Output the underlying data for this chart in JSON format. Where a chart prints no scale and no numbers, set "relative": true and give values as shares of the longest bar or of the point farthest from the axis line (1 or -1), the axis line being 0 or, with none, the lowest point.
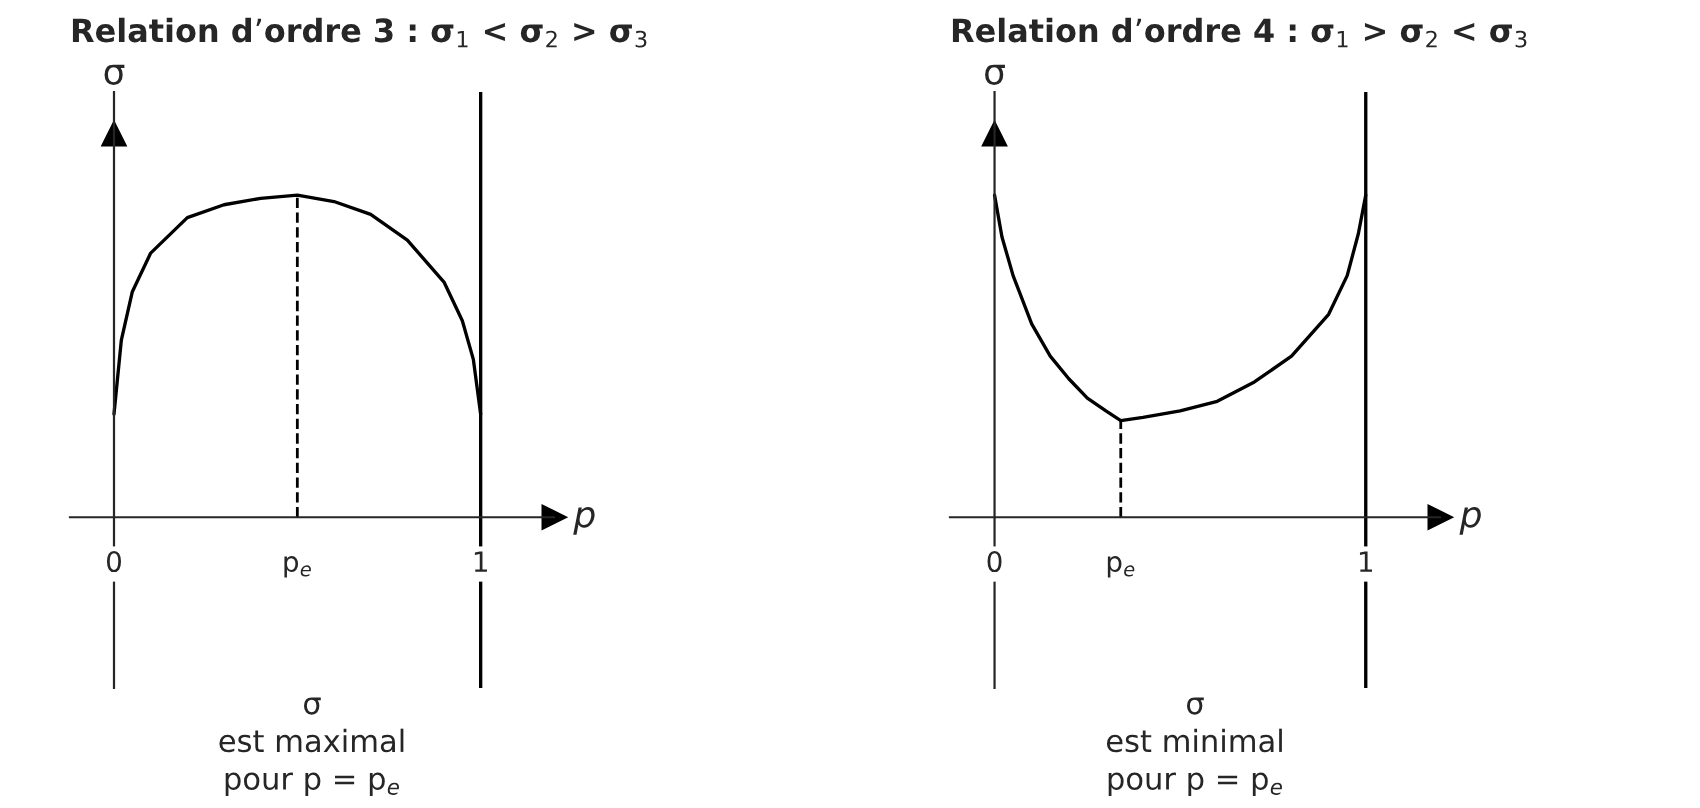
{
  "chart_data": [
    {
      "type": "line",
      "title": "Relation d’ordre 3 : σ$_{1}$ < σ$_{2}$ > σ$_{3}$",
      "xlabel": "p",
      "ylabel": "σ",
      "relative": true,
      "line_style": "solid",
      "marker": "none",
      "grid": false,
      "x": [
        0,
        0.02,
        0.05,
        0.1,
        0.2,
        0.3,
        0.4,
        0.5,
        0.6,
        0.7,
        0.8,
        0.9,
        0.95,
        0.98,
        1.0
      ],
      "series": [
        {
          "color": "#000000",
          "values": [
            0.32,
            0.55,
            0.7,
            0.82,
            0.93,
            0.97,
            0.99,
            1.0,
            0.98,
            0.94,
            0.86,
            0.73,
            0.61,
            0.49,
            0.32
          ]
        }
      ],
      "xlim": [
        -0.12,
        1.2
      ],
      "xticks": [
        {
          "value": 0,
          "label": "0"
        },
        {
          "value": 0.5,
          "label": "p$_{e}$"
        },
        {
          "value": 1,
          "label": "1"
        }
      ],
      "ref_lines": [
        {
          "axis": "x",
          "value": 1,
          "color": "#000000",
          "line_style": "solid"
        },
        {
          "axis": "x",
          "value": 0.5,
          "color": "#000000",
          "line_style": "dashed"
        }
      ],
      "annotations": [
        "σ\nest maximal\npour p = p$_{e}$"
      ]
    },
    {
      "type": "line",
      "title": "Relation d’ordre 4 : σ$_{1}$ > σ$_{2}$ < σ$_{3}$",
      "xlabel": "p",
      "ylabel": "σ",
      "relative": true,
      "line_style": "solid",
      "marker": "none",
      "grid": false,
      "x": [
        0,
        0.02,
        0.05,
        0.1,
        0.15,
        0.2,
        0.25,
        0.3,
        0.34,
        0.4,
        0.5,
        0.6,
        0.7,
        0.8,
        0.9,
        0.95,
        0.98,
        1.0
      ],
      "series": [
        {
          "color": "#000000",
          "values": [
            1.0,
            0.87,
            0.75,
            0.6,
            0.5,
            0.43,
            0.37,
            0.33,
            0.3,
            0.31,
            0.33,
            0.36,
            0.42,
            0.5,
            0.63,
            0.75,
            0.88,
            1.0
          ]
        }
      ],
      "xlim": [
        -0.12,
        1.2
      ],
      "xticks": [
        {
          "value": 0,
          "label": "0"
        },
        {
          "value": 0.34,
          "label": "p$_{e}$"
        },
        {
          "value": 1,
          "label": "1"
        }
      ],
      "ref_lines": [
        {
          "axis": "x",
          "value": 1,
          "color": "#000000",
          "line_style": "solid"
        },
        {
          "axis": "x",
          "value": 0.34,
          "color": "#000000",
          "line_style": "dashed"
        }
      ],
      "annotations": [
        "σ\nest minimal\npour p = p$_{e}$"
      ]
    }
  ]
}
